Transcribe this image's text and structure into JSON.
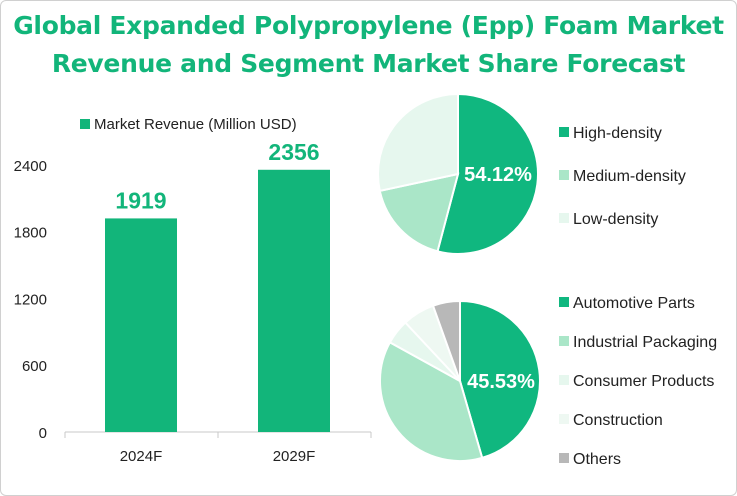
{
  "title_lines": [
    "Global Expanded Polypropylene (Epp) Foam Market",
    "Revenue and Segment Market Share Forecast"
  ],
  "colors": {
    "accent": "#12b57a",
    "text": "#222222",
    "axis": "#c8c8c8",
    "slice_palette": [
      "#10b77f",
      "#aae6c8",
      "#e6f7ee",
      "#eef8f2",
      "#b8b8b8"
    ]
  },
  "chart_data": [
    {
      "type": "bar",
      "legend": "Market Revenue (Million USD)",
      "legend_position": "top",
      "categories": [
        "2024F",
        "2029F"
      ],
      "values": [
        1919,
        2356
      ],
      "value_labels": [
        "1919",
        "2356"
      ],
      "yticks": [
        "0",
        "600",
        "1200",
        "1800",
        "2400"
      ],
      "ylim": [
        0,
        2700
      ],
      "grid": false
    },
    {
      "type": "pie",
      "labels": [
        "High-density",
        "Medium-density",
        "Low-density"
      ],
      "values": [
        54.12,
        17.5,
        28.38
      ],
      "highlight_label": "54.12%",
      "legend_position": "right"
    },
    {
      "type": "pie",
      "labels": [
        "Automotive Parts",
        "Industrial Packaging",
        "Consumer Products",
        "Construction",
        "Others"
      ],
      "values": [
        45.53,
        37.5,
        5.0,
        6.5,
        5.47
      ],
      "highlight_label": "45.53%",
      "legend_position": "right"
    }
  ]
}
